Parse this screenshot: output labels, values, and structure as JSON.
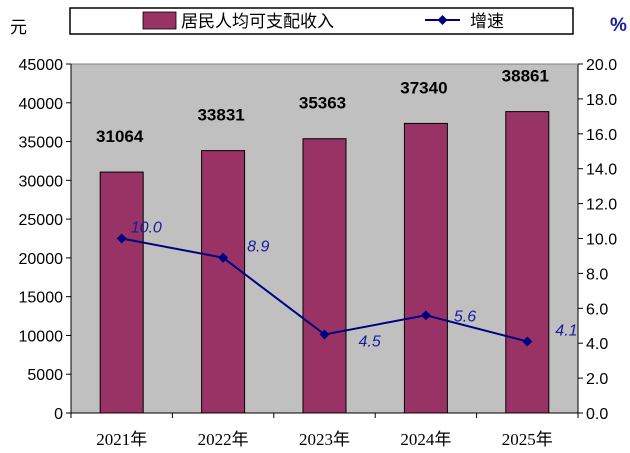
{
  "colors": {
    "bar": "#993366",
    "line": "#000080",
    "label": "#1a1aa0",
    "plot_bg": "#c0c0c0"
  },
  "chart_data": {
    "type": "bar+line",
    "categories": [
      "2021年",
      "2022年",
      "2023年",
      "2024年",
      "2025年"
    ],
    "series": [
      {
        "name": "居民人均可支配收入",
        "type": "bar",
        "axis": "left",
        "values": [
          31064,
          33831,
          35363,
          37340,
          38861
        ]
      },
      {
        "name": "增速",
        "type": "line",
        "axis": "right",
        "marker": "diamond",
        "values": [
          10.0,
          8.9,
          4.5,
          5.6,
          4.1
        ],
        "labels": [
          "10.0",
          "8.9",
          "4.5",
          "5.6",
          "4.1"
        ]
      }
    ],
    "y_left": {
      "unit": "元",
      "min": 0,
      "max": 45000,
      "step": 5000,
      "ticks": [
        "0",
        "5000",
        "10000",
        "15000",
        "20000",
        "25000",
        "30000",
        "35000",
        "40000",
        "45000"
      ]
    },
    "y_right": {
      "unit": "%",
      "min": 0,
      "max": 20,
      "step": 2,
      "ticks": [
        "0.0",
        "2.0",
        "4.0",
        "6.0",
        "8.0",
        "10.0",
        "12.0",
        "14.0",
        "16.0",
        "18.0",
        "20.0"
      ]
    },
    "grid": false,
    "legend_position": "top"
  }
}
